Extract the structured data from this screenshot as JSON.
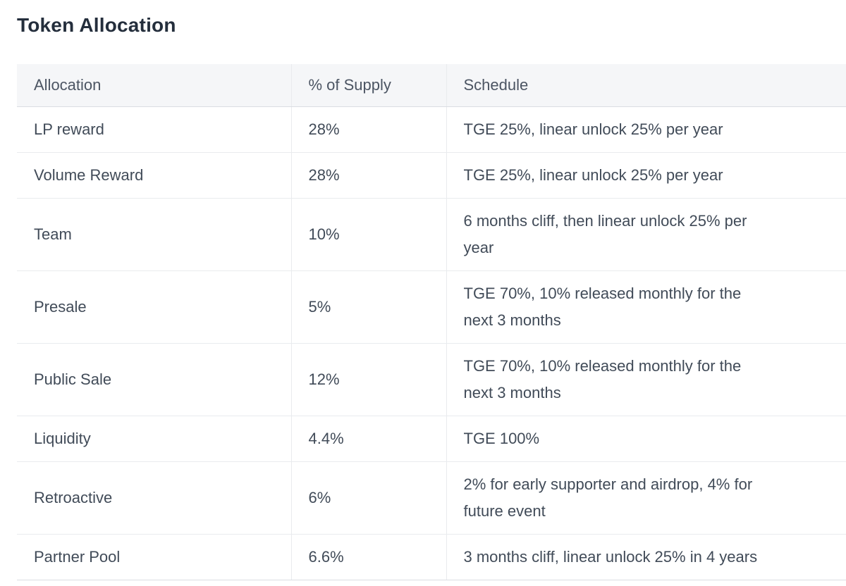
{
  "page": {
    "title": "Token Allocation"
  },
  "table": {
    "columns": [
      {
        "key": "allocation",
        "label": "Allocation"
      },
      {
        "key": "supply",
        "label": "% of Supply"
      },
      {
        "key": "schedule",
        "label": "Schedule"
      }
    ],
    "rows": [
      {
        "allocation": "LP reward",
        "supply": "28%",
        "schedule": "TGE 25%, linear unlock 25% per year"
      },
      {
        "allocation": "Volume Reward",
        "supply": "28%",
        "schedule": "TGE 25%, linear unlock 25% per year"
      },
      {
        "allocation": "Team",
        "supply": "10%",
        "schedule": "6 months cliff, then linear unlock 25% per year"
      },
      {
        "allocation": "Presale",
        "supply": "5%",
        "schedule": "TGE 70%, 10% released monthly for the next 3 months"
      },
      {
        "allocation": "Public Sale",
        "supply": "12%",
        "schedule": "TGE 70%, 10% released monthly for the next 3 months"
      },
      {
        "allocation": "Liquidity",
        "supply": "4.4%",
        "schedule": "TGE 100%"
      },
      {
        "allocation": "Retroactive",
        "supply": "6%",
        "schedule": "2% for early supporter and airdrop, 4% for future event"
      },
      {
        "allocation": "Partner Pool",
        "supply": "6.6%",
        "schedule": "3 months cliff, linear unlock 25% in 4 years"
      }
    ]
  },
  "colors": {
    "page_background": "#ffffff",
    "header_background": "#f5f6f8",
    "row_divider": "#e9ebee",
    "strong_border": "#dadde2",
    "title_text": "#242e3c",
    "header_text": "#4c5563",
    "body_text": "#414b58"
  }
}
